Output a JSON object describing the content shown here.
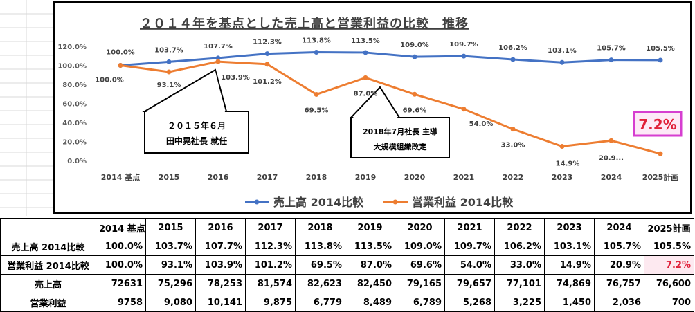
{
  "chart_data": {
    "type": "line",
    "title": "２０１４年を基点とした売上高と営業利益の比較　推移",
    "categories": [
      "2014 基点",
      "2015",
      "2016",
      "2017",
      "2018",
      "2019",
      "2020",
      "2021",
      "2022",
      "2023",
      "2024",
      "2025計画"
    ],
    "ylim": [
      0,
      120
    ],
    "yticks": [
      "0.0%",
      "20.0%",
      "40.0%",
      "60.0%",
      "80.0%",
      "100.0%",
      "120.0%"
    ],
    "series": [
      {
        "name": "売上高 2014比較",
        "color": "#4472c4",
        "values": [
          100.0,
          103.7,
          107.7,
          112.3,
          113.8,
          113.5,
          109.0,
          109.7,
          106.2,
          103.1,
          105.7,
          105.5
        ],
        "labels": [
          "100.0%",
          "103.7%",
          "107.7%",
          "112.3%",
          "113.8%",
          "113.5%",
          "109.0%",
          "109.7%",
          "106.2%",
          "103.1%",
          "105.7%",
          "105.5%"
        ]
      },
      {
        "name": "営業利益 2014比較",
        "color": "#ed7d31",
        "values": [
          100.0,
          93.1,
          103.9,
          101.2,
          69.5,
          87.0,
          69.6,
          54.0,
          33.0,
          14.9,
          20.9,
          7.2
        ],
        "labels": [
          "100.0%",
          "93.1%",
          "103.9%",
          "101.2%",
          "69.5%",
          "87.0%",
          "69.6%",
          "54.0%",
          "33.0%",
          "14.9%",
          "20.9...",
          "7.2%"
        ]
      }
    ],
    "callouts": [
      {
        "lines": [
          "２０１５年６月",
          "田中晃社長 就任"
        ]
      },
      {
        "lines": [
          "2018年7月社長 主導",
          "大規模組織改定"
        ]
      }
    ],
    "highlight_label": "7.2%"
  },
  "table": {
    "headers": [
      "2014 基点",
      "2015",
      "2016",
      "2017",
      "2018",
      "2019",
      "2020",
      "2021",
      "2022",
      "2023",
      "2024",
      "2025計画"
    ],
    "rows": [
      {
        "label": "売上高 2014比較",
        "values": [
          "100.0%",
          "103.7%",
          "107.7%",
          "112.3%",
          "113.8%",
          "113.5%",
          "109.0%",
          "109.7%",
          "106.2%",
          "103.1%",
          "105.7%",
          "105.5%"
        ]
      },
      {
        "label": "営業利益 2014比較",
        "values": [
          "100.0%",
          "93.1%",
          "103.9%",
          "101.2%",
          "69.5%",
          "87.0%",
          "69.6%",
          "54.0%",
          "33.0%",
          "14.9%",
          "20.9%",
          "7.2%"
        ]
      },
      {
        "label": "売上高",
        "values": [
          "72631",
          "75,296",
          "78,253",
          "81,574",
          "82,623",
          "82,450",
          "79,165",
          "79,657",
          "77,101",
          "74,869",
          "76,757",
          "76,600"
        ]
      },
      {
        "label": "営業利益",
        "values": [
          "9758",
          "9,080",
          "10,141",
          "9,875",
          "6,779",
          "8,489",
          "6,789",
          "5,268",
          "3,225",
          "1,450",
          "2,036",
          "700"
        ]
      }
    ]
  }
}
